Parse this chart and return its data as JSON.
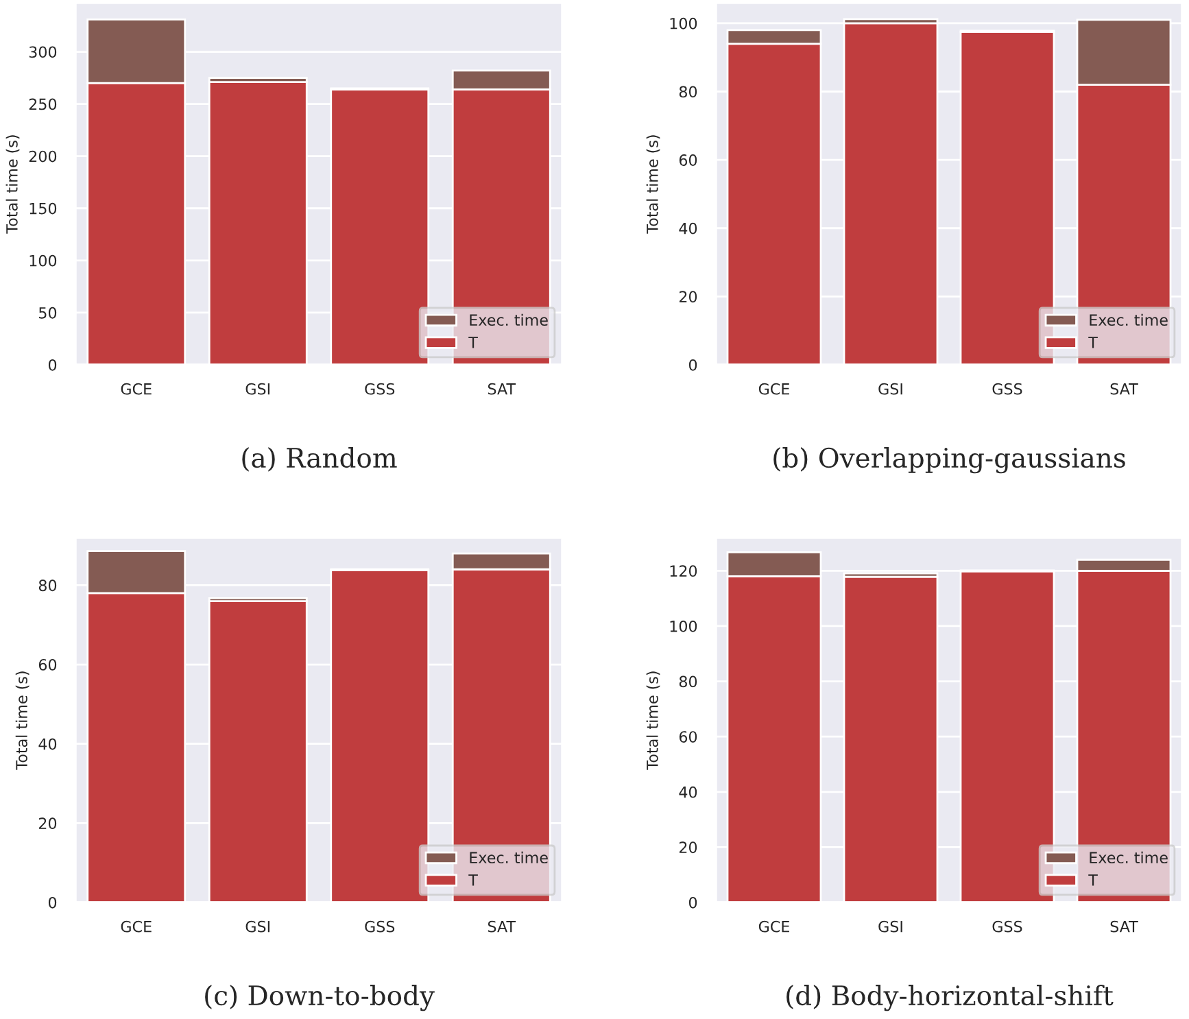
{
  "chart_data": [
    {
      "type": "bar",
      "stacked": true,
      "categories": [
        "GCE",
        "GSI",
        "GSS",
        "SAT"
      ],
      "xlabel": "(a) Random",
      "ylabel": "Total time (s)",
      "ylim": [
        0,
        347
      ],
      "yticks": [
        0,
        50,
        100,
        150,
        200,
        250,
        300
      ],
      "grid": "y",
      "legend": "bottom right",
      "series": [
        {
          "name": "T",
          "color": "#c03d3e",
          "values": [
            270,
            271,
            264,
            264
          ]
        },
        {
          "name": "Exec. time",
          "color": "#845b53",
          "values": [
            61,
            4,
            1,
            18
          ]
        }
      ]
    },
    {
      "type": "bar",
      "stacked": true,
      "categories": [
        "GCE",
        "GSI",
        "GSS",
        "SAT"
      ],
      "xlabel": "(b) Overlapping-gaussians",
      "ylabel": "Total time (s)",
      "ylim": [
        0,
        106
      ],
      "yticks": [
        0,
        20,
        40,
        60,
        80,
        100
      ],
      "grid": "y",
      "legend": "bottom right",
      "series": [
        {
          "name": "T",
          "color": "#c03d3e",
          "values": [
            94,
            100,
            97.5,
            82
          ]
        },
        {
          "name": "Exec. time",
          "color": "#845b53",
          "values": [
            4,
            1.2,
            0.3,
            19
          ]
        }
      ]
    },
    {
      "type": "bar",
      "stacked": true,
      "categories": [
        "GCE",
        "GSI",
        "GSS",
        "SAT"
      ],
      "xlabel": "(c) Down-to-body",
      "ylabel": "Total time (s)",
      "ylim": [
        0,
        92
      ],
      "yticks": [
        0,
        20,
        40,
        60,
        80
      ],
      "grid": "y",
      "legend": "bottom right",
      "series": [
        {
          "name": "T",
          "color": "#c03d3e",
          "values": [
            78,
            76,
            83.8,
            84
          ]
        },
        {
          "name": "Exec. time",
          "color": "#845b53",
          "values": [
            10.6,
            0.7,
            0.2,
            4
          ]
        }
      ]
    },
    {
      "type": "bar",
      "stacked": true,
      "categories": [
        "GCE",
        "GSI",
        "GSS",
        "SAT"
      ],
      "xlabel": "(d) Body-horizontal-shift",
      "ylabel": "Total time (s)",
      "ylim": [
        0,
        132
      ],
      "yticks": [
        0,
        20,
        40,
        60,
        80,
        100,
        120
      ],
      "grid": "y",
      "legend": "bottom right",
      "series": [
        {
          "name": "T",
          "color": "#c03d3e",
          "values": [
            118,
            117.8,
            119.8,
            120
          ]
        },
        {
          "name": "Exec. time",
          "color": "#845b53",
          "values": [
            8.7,
            1.3,
            0.3,
            4
          ]
        }
      ]
    }
  ]
}
